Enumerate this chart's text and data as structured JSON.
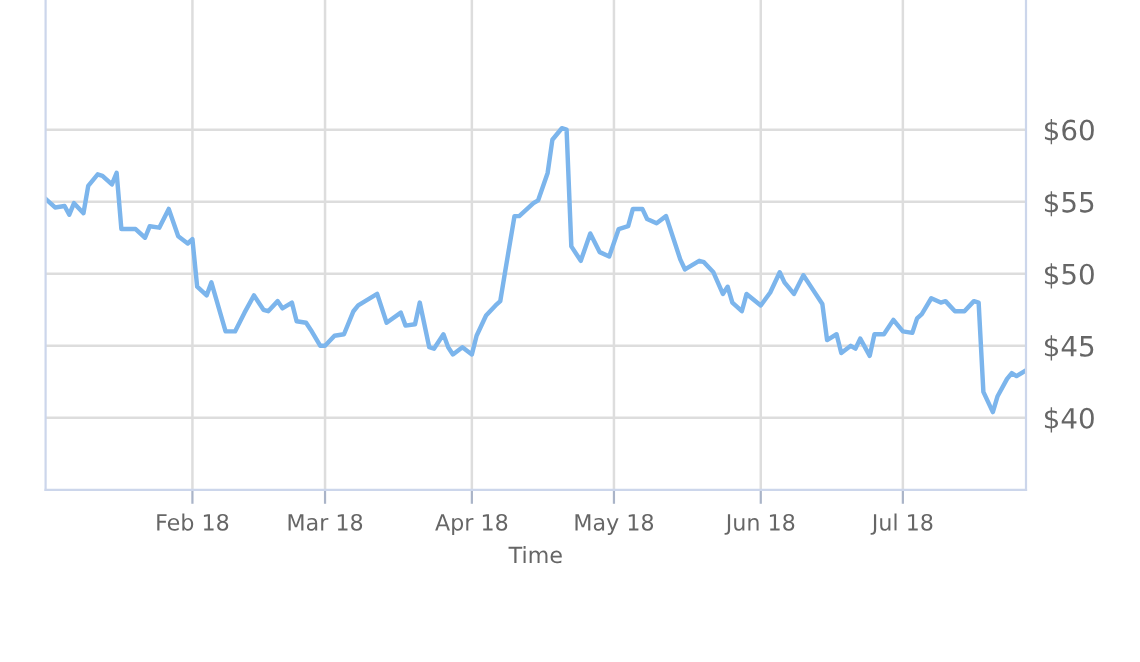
{
  "chart_data": {
    "type": "line",
    "xlabel": "Time",
    "x": [
      "2018-01-01",
      "2018-01-03",
      "2018-01-05",
      "2018-01-06",
      "2018-01-07",
      "2018-01-09",
      "2018-01-10",
      "2018-01-12",
      "2018-01-13",
      "2018-01-15",
      "2018-01-16",
      "2018-01-17",
      "2018-01-20",
      "2018-01-22",
      "2018-01-23",
      "2018-01-25",
      "2018-01-27",
      "2018-01-29",
      "2018-01-31",
      "2018-02-01",
      "2018-02-02",
      "2018-02-04",
      "2018-02-05",
      "2018-02-08",
      "2018-02-10",
      "2018-02-12",
      "2018-02-14",
      "2018-02-16",
      "2018-02-17",
      "2018-02-19",
      "2018-02-20",
      "2018-02-22",
      "2018-02-23",
      "2018-02-25",
      "2018-02-26",
      "2018-02-28",
      "2018-03-01",
      "2018-03-03",
      "2018-03-05",
      "2018-03-07",
      "2018-03-08",
      "2018-03-10",
      "2018-03-12",
      "2018-03-14",
      "2018-03-17",
      "2018-03-18",
      "2018-03-20",
      "2018-03-21",
      "2018-03-23",
      "2018-03-24",
      "2018-03-26",
      "2018-03-27",
      "2018-03-28",
      "2018-03-30",
      "2018-04-01",
      "2018-04-02",
      "2018-04-04",
      "2018-04-06",
      "2018-04-07",
      "2018-04-08",
      "2018-04-10",
      "2018-04-11",
      "2018-04-14",
      "2018-04-15",
      "2018-04-17",
      "2018-04-18",
      "2018-04-20",
      "2018-04-21",
      "2018-04-22",
      "2018-04-24",
      "2018-04-26",
      "2018-04-28",
      "2018-04-30",
      "2018-05-02",
      "2018-05-04",
      "2018-05-05",
      "2018-05-07",
      "2018-05-08",
      "2018-05-10",
      "2018-05-12",
      "2018-05-15",
      "2018-05-16",
      "2018-05-19",
      "2018-05-20",
      "2018-05-22",
      "2018-05-24",
      "2018-05-25",
      "2018-05-26",
      "2018-05-28",
      "2018-05-29",
      "2018-06-01",
      "2018-06-03",
      "2018-06-05",
      "2018-06-06",
      "2018-06-08",
      "2018-06-10",
      "2018-06-12",
      "2018-06-14",
      "2018-06-15",
      "2018-06-17",
      "2018-06-18",
      "2018-06-20",
      "2018-06-21",
      "2018-06-22",
      "2018-06-24",
      "2018-06-25",
      "2018-06-27",
      "2018-06-29",
      "2018-07-01",
      "2018-07-03",
      "2018-07-04",
      "2018-07-05",
      "2018-07-07",
      "2018-07-09",
      "2018-07-10",
      "2018-07-12",
      "2018-07-14",
      "2018-07-16",
      "2018-07-17",
      "2018-07-18",
      "2018-07-20",
      "2018-07-21",
      "2018-07-23",
      "2018-07-24",
      "2018-07-25",
      "2018-07-27"
    ],
    "series": [
      {
        "color": "#7cb5ec",
        "values": [
          55.2,
          54.6,
          54.7,
          54.1,
          54.9,
          54.2,
          56.1,
          56.9,
          56.8,
          56.2,
          57.0,
          53.1,
          53.1,
          52.5,
          53.3,
          53.2,
          54.5,
          52.6,
          52.1,
          52.4,
          49.1,
          48.5,
          49.4,
          46.0,
          46.0,
          47.3,
          48.5,
          47.5,
          47.4,
          48.1,
          47.6,
          48.0,
          46.7,
          46.6,
          46.1,
          45.0,
          45.0,
          45.7,
          45.8,
          47.4,
          47.8,
          48.2,
          48.6,
          46.6,
          47.3,
          46.4,
          46.5,
          48.0,
          44.9,
          44.8,
          45.8,
          44.9,
          44.4,
          44.9,
          44.4,
          45.7,
          47.1,
          47.8,
          48.1,
          50.1,
          54.0,
          54.0,
          54.9,
          55.1,
          57.0,
          59.3,
          60.1,
          60.0,
          51.9,
          50.9,
          52.8,
          51.5,
          51.2,
          53.1,
          53.3,
          54.5,
          54.5,
          53.8,
          53.5,
          54.0,
          51.0,
          50.3,
          50.9,
          50.8,
          50.1,
          48.6,
          49.1,
          48.0,
          47.4,
          48.6,
          47.8,
          48.7,
          50.1,
          49.4,
          48.6,
          49.9,
          48.9,
          47.9,
          45.4,
          45.8,
          44.5,
          45.0,
          44.8,
          45.5,
          44.3,
          45.8,
          45.8,
          46.8,
          46.0,
          45.9,
          46.9,
          47.2,
          48.3,
          48.0,
          48.1,
          47.4,
          47.4,
          48.1,
          48.0,
          41.8,
          40.4,
          41.5,
          42.7,
          43.1,
          42.9,
          43.3
        ]
      }
    ],
    "xlim": [
      "2018-01-01",
      "2018-07-27"
    ],
    "xticks": [
      {
        "value": "2018-02-01",
        "label": "Feb 18"
      },
      {
        "value": "2018-03-01",
        "label": "Mar 18"
      },
      {
        "value": "2018-04-01",
        "label": "Apr 18"
      },
      {
        "value": "2018-05-01",
        "label": "May 18"
      },
      {
        "value": "2018-06-01",
        "label": "Jun 18"
      },
      {
        "value": "2018-07-01",
        "label": "Jul 18"
      }
    ],
    "ylim": [
      35,
      69
    ],
    "yticks": [
      {
        "value": 40,
        "label": "$40"
      },
      {
        "value": 45,
        "label": "$45"
      },
      {
        "value": 50,
        "label": "$50"
      },
      {
        "value": 55,
        "label": "$55"
      },
      {
        "value": 60,
        "label": "$60"
      }
    ],
    "grid": true,
    "marker": "none",
    "line_style": "solid"
  }
}
